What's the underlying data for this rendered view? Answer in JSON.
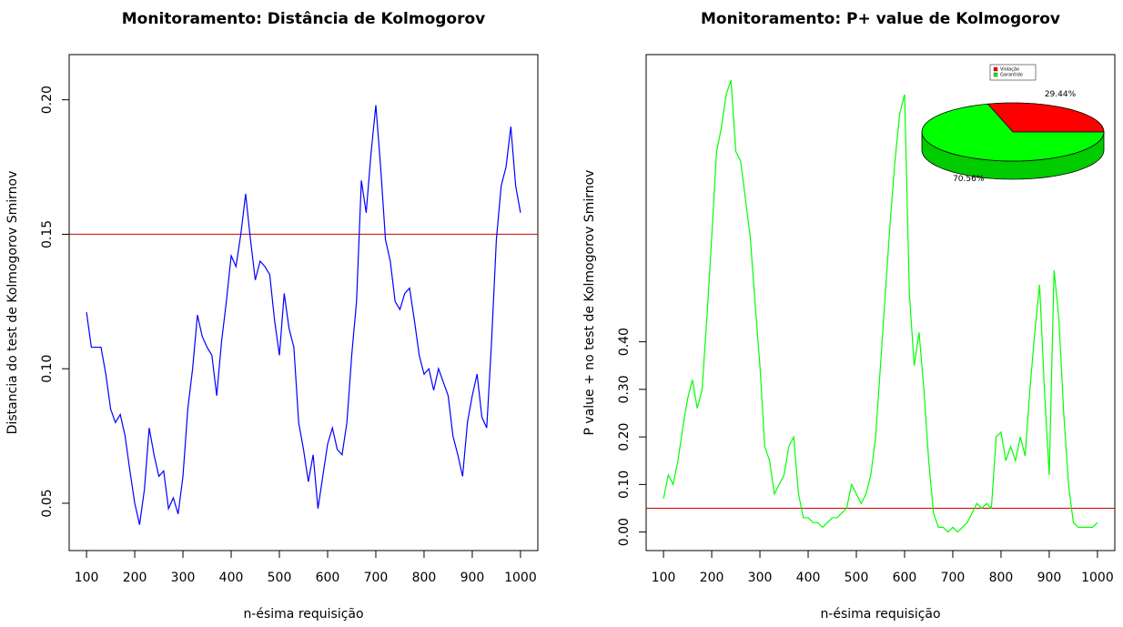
{
  "chart_data": [
    {
      "type": "line",
      "title": "Monitoramento: Distância de Kolmogorov",
      "x_label": "n-ésima requisição",
      "y_label": "Distancia do test de Kolmogorov Smirnov",
      "x": [
        100,
        110,
        120,
        130,
        140,
        150,
        160,
        170,
        180,
        190,
        200,
        210,
        220,
        230,
        240,
        250,
        260,
        270,
        280,
        290,
        300,
        310,
        320,
        330,
        340,
        350,
        360,
        370,
        380,
        390,
        400,
        410,
        420,
        430,
        440,
        450,
        460,
        470,
        480,
        490,
        500,
        510,
        520,
        530,
        540,
        550,
        560,
        570,
        580,
        590,
        600,
        610,
        620,
        630,
        640,
        650,
        660,
        670,
        680,
        690,
        700,
        710,
        720,
        730,
        740,
        750,
        760,
        770,
        780,
        790,
        800,
        810,
        820,
        830,
        840,
        850,
        860,
        870,
        880,
        890,
        900,
        910,
        920,
        930,
        940,
        950,
        960,
        970,
        980,
        990,
        1000
      ],
      "series": [
        {
          "color": "#0000ff",
          "values": [
            0.121,
            0.108,
            0.108,
            0.108,
            0.098,
            0.085,
            0.08,
            0.083,
            0.075,
            0.062,
            0.05,
            0.042,
            0.055,
            0.078,
            0.068,
            0.06,
            0.062,
            0.048,
            0.052,
            0.046,
            0.06,
            0.085,
            0.1,
            0.12,
            0.112,
            0.108,
            0.105,
            0.09,
            0.11,
            0.125,
            0.142,
            0.138,
            0.15,
            0.165,
            0.148,
            0.133,
            0.14,
            0.138,
            0.135,
            0.118,
            0.105,
            0.128,
            0.115,
            0.108,
            0.08,
            0.07,
            0.058,
            0.068,
            0.048,
            0.06,
            0.072,
            0.078,
            0.07,
            0.068,
            0.08,
            0.105,
            0.125,
            0.17,
            0.158,
            0.18,
            0.198,
            0.175,
            0.148,
            0.14,
            0.125,
            0.122,
            0.128,
            0.13,
            0.118,
            0.105,
            0.098,
            0.1,
            0.092,
            0.1,
            0.095,
            0.09,
            0.075,
            0.068,
            0.06,
            0.08,
            0.09,
            0.098,
            0.082,
            0.078,
            0.11,
            0.148,
            0.168,
            0.175,
            0.19,
            0.168,
            0.158
          ]
        }
      ],
      "hline": 0.15,
      "hline_color": "#cc0000",
      "xlim": [
        64,
        1036
      ],
      "xticks": [
        100,
        200,
        300,
        400,
        500,
        600,
        700,
        800,
        900,
        1000
      ],
      "ylim": [
        0.0324,
        0.2168
      ],
      "yticks": [
        {
          "value": 0.05,
          "label": "0.05"
        },
        {
          "value": 0.1,
          "label": "0.10"
        },
        {
          "value": 0.15,
          "label": "0.15"
        },
        {
          "value": 0.2,
          "label": "0.20"
        }
      ]
    },
    {
      "type": "line",
      "title": "Monitoramento: P+ value de Kolmogorov",
      "x_label": "n-ésima requisição",
      "y_label": "P value + no test de Kolmogorov Smirnov",
      "x": [
        100,
        110,
        120,
        130,
        140,
        150,
        160,
        170,
        180,
        190,
        200,
        210,
        220,
        230,
        240,
        250,
        260,
        270,
        280,
        290,
        300,
        310,
        320,
        330,
        340,
        350,
        360,
        370,
        380,
        390,
        400,
        410,
        420,
        430,
        440,
        450,
        460,
        470,
        480,
        490,
        500,
        510,
        520,
        530,
        540,
        550,
        560,
        570,
        580,
        590,
        600,
        610,
        620,
        630,
        640,
        650,
        660,
        670,
        680,
        690,
        700,
        710,
        720,
        730,
        740,
        750,
        760,
        770,
        780,
        790,
        800,
        810,
        820,
        830,
        840,
        850,
        860,
        870,
        880,
        890,
        900,
        910,
        920,
        930,
        940,
        950,
        960,
        970,
        980,
        990,
        1000
      ],
      "series": [
        {
          "color": "#00ff00",
          "values": [
            0.07,
            0.12,
            0.1,
            0.15,
            0.22,
            0.28,
            0.32,
            0.26,
            0.3,
            0.45,
            0.62,
            0.8,
            0.85,
            0.92,
            0.95,
            0.8,
            0.78,
            0.7,
            0.62,
            0.48,
            0.35,
            0.18,
            0.15,
            0.08,
            0.1,
            0.12,
            0.18,
            0.2,
            0.08,
            0.03,
            0.03,
            0.02,
            0.02,
            0.01,
            0.02,
            0.03,
            0.03,
            0.04,
            0.05,
            0.1,
            0.08,
            0.06,
            0.08,
            0.12,
            0.2,
            0.35,
            0.5,
            0.65,
            0.78,
            0.88,
            0.92,
            0.5,
            0.35,
            0.42,
            0.3,
            0.15,
            0.04,
            0.01,
            0.01,
            0.0,
            0.01,
            0.0,
            0.01,
            0.02,
            0.04,
            0.06,
            0.05,
            0.06,
            0.05,
            0.2,
            0.21,
            0.15,
            0.18,
            0.15,
            0.2,
            0.16,
            0.3,
            0.42,
            0.52,
            0.3,
            0.12,
            0.55,
            0.45,
            0.25,
            0.1,
            0.02,
            0.01,
            0.01,
            0.01,
            0.01,
            0.02
          ]
        }
      ],
      "hline": 0.05,
      "hline_color": "#cc0000",
      "xlim": [
        64,
        1036
      ],
      "xticks": [
        100,
        200,
        300,
        400,
        500,
        600,
        700,
        800,
        900,
        1000
      ],
      "ylim": [
        -0.039,
        1.004
      ],
      "yticks": [
        {
          "value": 0,
          "label": "0.00"
        },
        {
          "value": 0.1,
          "label": "0.10"
        },
        {
          "value": 0.2,
          "label": "0.20"
        },
        {
          "value": 0.3,
          "label": "0.30"
        },
        {
          "value": 0.4,
          "label": "0.40"
        }
      ],
      "inset": {
        "type": "pie",
        "categories": [
          "Violação",
          "Garantido"
        ],
        "values": [
          29.44,
          70.56
        ],
        "value_labels": [
          "29.44%",
          "70.56%"
        ],
        "colors": [
          "#ff0000",
          "#00ff00"
        ]
      }
    }
  ]
}
